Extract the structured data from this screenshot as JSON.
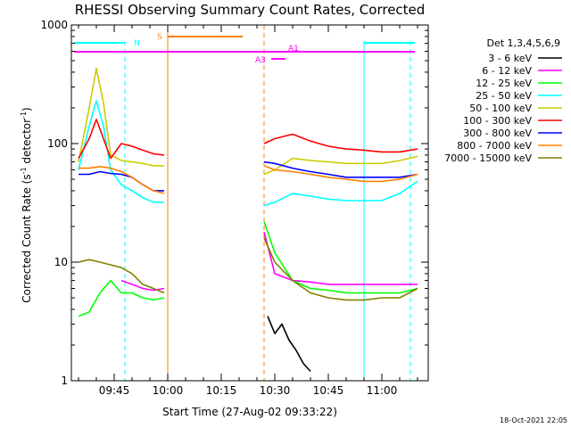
{
  "chart_data": {
    "type": "line",
    "title": "RHESSI Observing Summary Count Rates, Corrected",
    "xlabel": "Start Time (27-Aug-02 09:33:22)",
    "ylabel": "Corrected Count Rate (s⁻¹ detector⁻¹)",
    "ylabel_main": "Corrected Count Rate (s",
    "ylabel_sup1": "-1",
    "ylabel_mid": " detector",
    "ylabel_sup2": "-1",
    "ylabel_end": ")",
    "yscale": "log",
    "ylim": [
      1,
      1000
    ],
    "xlim": [
      "09:33",
      "11:13"
    ],
    "x_tick_labels": [
      "09:45",
      "10:00",
      "10:15",
      "10:30",
      "10:45",
      "11:00"
    ],
    "y_tick_labels": [
      "1",
      "10",
      "100",
      "1000"
    ],
    "legend_title": "Det 1,3,4,5,6,9",
    "legend_position": "right",
    "footer": "18-Oct-2021 22:05",
    "annotations": {
      "night_label": "N",
      "saa_label": "S",
      "a1_label": "A1",
      "a3_label": "A3"
    },
    "gaps": [
      [
        "10:01",
        "10:27"
      ]
    ],
    "series": [
      {
        "name": "3 - 6 keV",
        "color": "#000000",
        "x": [
          "10:28",
          "10:30",
          "10:32",
          "10:34",
          "10:36",
          "10:38",
          "10:40"
        ],
        "y": [
          3.5,
          2.5,
          3.0,
          2.2,
          1.8,
          1.4,
          1.2
        ]
      },
      {
        "name": "6 - 12 keV",
        "color": "#ff00ff",
        "x": [
          "09:47",
          "09:50",
          "09:53",
          "09:56",
          "09:59",
          "10:27",
          "10:30",
          "10:35",
          "10:40",
          "10:45",
          "10:50",
          "10:55",
          "11:00",
          "11:05",
          "11:10"
        ],
        "y": [
          7.0,
          6.5,
          6.0,
          5.8,
          6.0,
          18,
          8.0,
          7.0,
          6.8,
          6.5,
          6.5,
          6.5,
          6.5,
          6.5,
          6.5
        ]
      },
      {
        "name": "12 - 25 keV",
        "color": "#00ff00",
        "x": [
          "09:35",
          "09:38",
          "09:41",
          "09:44",
          "09:47",
          "09:50",
          "09:53",
          "09:56",
          "09:59",
          "10:27",
          "10:30",
          "10:35",
          "10:40",
          "10:45",
          "10:50",
          "10:55",
          "11:00",
          "11:05",
          "11:10"
        ],
        "y": [
          3.5,
          3.8,
          5.5,
          7.0,
          5.5,
          5.5,
          5.0,
          4.8,
          5.0,
          22,
          12,
          7.0,
          6.0,
          5.8,
          5.5,
          5.5,
          5.5,
          5.5,
          6.0
        ]
      },
      {
        "name": "25 - 50 keV",
        "color": "#00ffff",
        "x": [
          "09:35",
          "09:38",
          "09:40",
          "09:42",
          "09:44",
          "09:47",
          "09:50",
          "09:53",
          "09:56",
          "09:59",
          "10:27",
          "10:30",
          "10:35",
          "10:40",
          "10:45",
          "10:50",
          "10:55",
          "11:00",
          "11:05",
          "11:10"
        ],
        "y": [
          60,
          140,
          230,
          140,
          60,
          45,
          40,
          35,
          32,
          32,
          30,
          32,
          38,
          36,
          34,
          33,
          33,
          33,
          38,
          48
        ]
      },
      {
        "name": "50 - 100 keV",
        "color": "#cccc00",
        "x": [
          "09:35",
          "09:38",
          "09:40",
          "09:42",
          "09:44",
          "09:47",
          "09:50",
          "09:53",
          "09:56",
          "09:59",
          "10:27",
          "10:30",
          "10:35",
          "10:40",
          "10:45",
          "10:50",
          "10:55",
          "11:00",
          "11:05",
          "11:10"
        ],
        "y": [
          70,
          200,
          430,
          220,
          80,
          72,
          70,
          68,
          65,
          65,
          55,
          60,
          75,
          72,
          70,
          68,
          68,
          68,
          72,
          78
        ]
      },
      {
        "name": "100 - 300 keV",
        "color": "#ff0000",
        "x": [
          "09:35",
          "09:38",
          "09:40",
          "09:42",
          "09:44",
          "09:47",
          "09:50",
          "09:53",
          "09:56",
          "09:59",
          "10:27",
          "10:30",
          "10:35",
          "10:40",
          "10:45",
          "10:50",
          "10:55",
          "11:00",
          "11:05",
          "11:10"
        ],
        "y": [
          75,
          110,
          160,
          110,
          75,
          100,
          95,
          88,
          82,
          80,
          100,
          110,
          120,
          105,
          95,
          90,
          88,
          85,
          85,
          90
        ]
      },
      {
        "name": "300 - 800 keV",
        "color": "#0000ff",
        "x": [
          "09:35",
          "09:38",
          "09:41",
          "09:44",
          "09:47",
          "09:50",
          "09:53",
          "09:56",
          "09:59",
          "10:27",
          "10:30",
          "10:35",
          "10:40",
          "10:45",
          "10:50",
          "10:55",
          "11:00",
          "11:05",
          "11:10"
        ],
        "y": [
          55,
          55,
          58,
          56,
          55,
          52,
          45,
          40,
          40,
          70,
          68,
          62,
          58,
          55,
          52,
          52,
          52,
          52,
          55
        ]
      },
      {
        "name": "800 - 7000 keV",
        "color": "#ff8000",
        "x": [
          "09:35",
          "09:38",
          "09:41",
          "09:44",
          "09:47",
          "09:50",
          "09:53",
          "09:56",
          "09:59",
          "10:27",
          "10:30",
          "10:35",
          "10:40",
          "10:45",
          "10:50",
          "10:55",
          "11:00",
          "11:05",
          "11:10"
        ],
        "y": [
          62,
          62,
          64,
          62,
          58,
          52,
          45,
          40,
          38,
          65,
          60,
          58,
          55,
          52,
          50,
          48,
          48,
          50,
          55
        ]
      },
      {
        "name": "7000 - 15000 keV",
        "color": "#808000",
        "x": [
          "09:35",
          "09:38",
          "09:41",
          "09:44",
          "09:47",
          "09:50",
          "09:53",
          "09:56",
          "09:59",
          "10:27",
          "10:30",
          "10:35",
          "10:40",
          "10:45",
          "10:50",
          "10:55",
          "11:00",
          "11:05",
          "11:10"
        ],
        "y": [
          10,
          10.5,
          10,
          9.5,
          9.0,
          8.0,
          6.5,
          6.0,
          5.5,
          16,
          10,
          7.0,
          5.5,
          5.0,
          4.8,
          4.8,
          5.0,
          5.0,
          6.0
        ]
      }
    ]
  }
}
